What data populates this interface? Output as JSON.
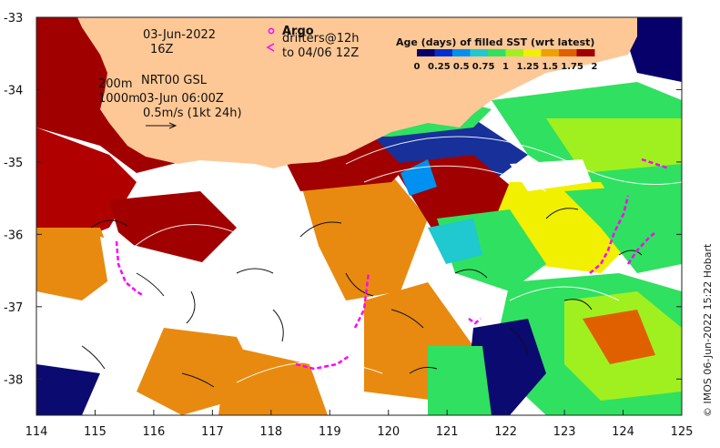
{
  "map": {
    "x_ticks": [
      "114",
      "115",
      "116",
      "117",
      "118",
      "119",
      "120",
      "121",
      "122",
      "123",
      "124",
      "125"
    ],
    "y_ticks": [
      "-33",
      "-34",
      "-35",
      "-36",
      "-37",
      "-38"
    ],
    "lon_range": [
      114,
      125
    ],
    "lat_range": [
      -38.5,
      -33
    ]
  },
  "annotations": {
    "date": "03-Jun-2022",
    "hour": "16Z",
    "depth_200": "200m",
    "product": "NRT00 GSL",
    "depth_1000": "1000m",
    "analysis_time": "03-Jun 06:00Z",
    "scale_label": "0.5m/s (1kt 24h)"
  },
  "drifters": {
    "argo_label": "Argo",
    "line1": "drifters@12h",
    "line2": "to 04/06 12Z"
  },
  "legend": {
    "title": "Age (days) of filled SST (wrt latest)",
    "ticks": [
      "0",
      "0.25",
      "0.5",
      "0.75",
      "1",
      "1.25",
      "1.5",
      "1.75",
      "2"
    ]
  },
  "credit": "© IMOS 06-Jun-2022 15:22 Hobart",
  "colors": {
    "land": "#fdc896",
    "magenta": "#ff00ff",
    "age_scale": [
      "#08006a",
      "#0030d0",
      "#0090f0",
      "#20c8d0",
      "#30e060",
      "#a0f020",
      "#f0f000",
      "#f0a000",
      "#e06000",
      "#a00000"
    ]
  }
}
